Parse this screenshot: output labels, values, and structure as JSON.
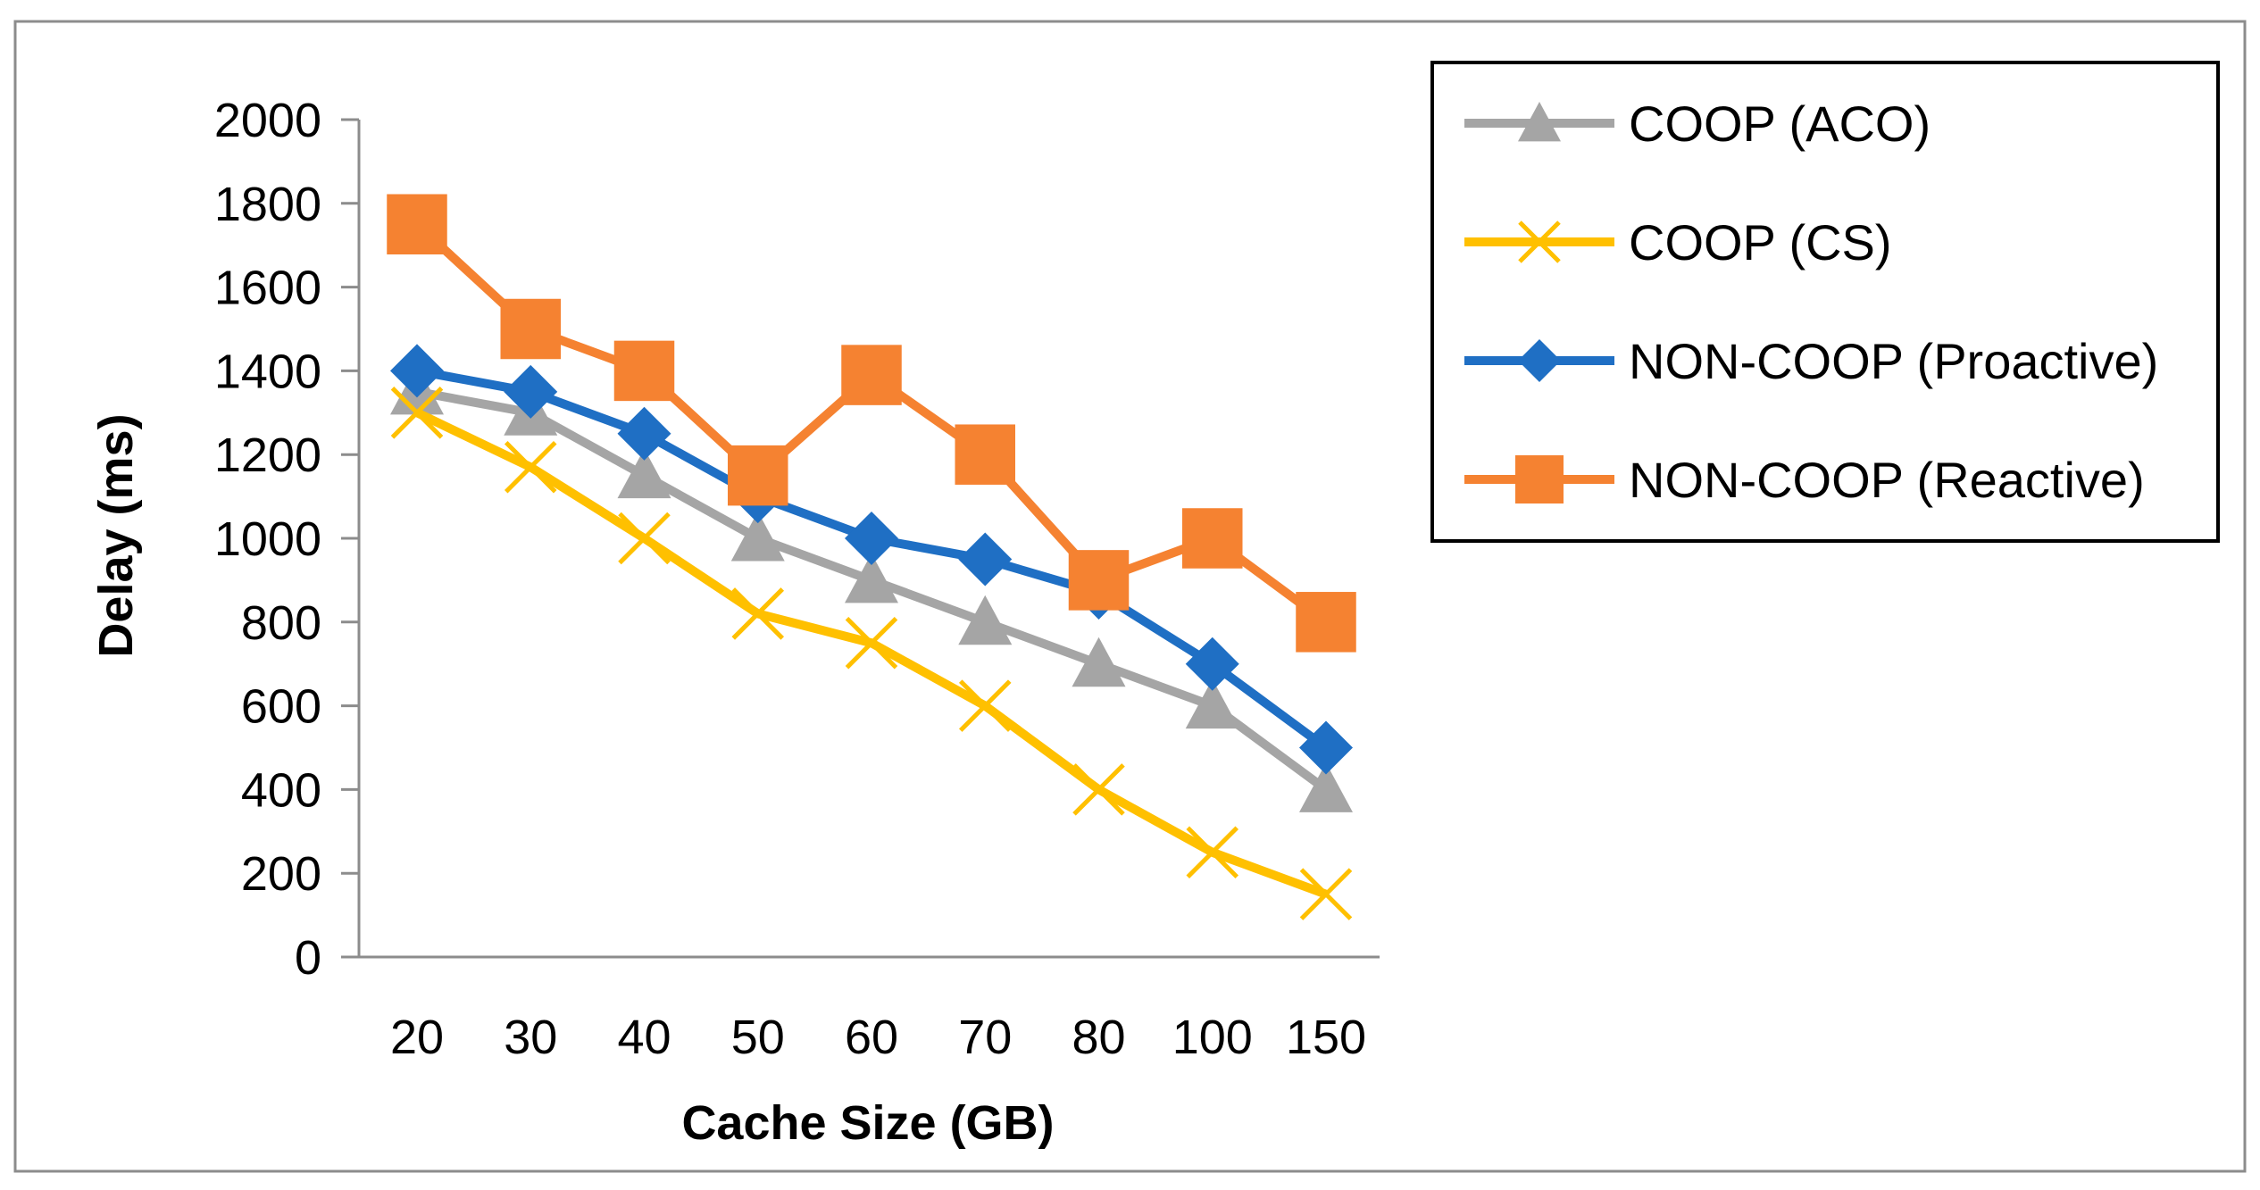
{
  "chart_data": {
    "type": "line",
    "title": "",
    "xlabel": "Cache Size (GB)",
    "ylabel": "Delay (ms)",
    "categories": [
      "20",
      "30",
      "40",
      "50",
      "60",
      "70",
      "80",
      "100",
      "150"
    ],
    "ylim": [
      0,
      2000
    ],
    "yticks": [
      0,
      200,
      400,
      600,
      800,
      1000,
      1200,
      1400,
      1600,
      1800,
      2000
    ],
    "grid": false,
    "legend_position": "right",
    "series": [
      {
        "name": "COOP (ACO)",
        "color": "#A5A5A5",
        "marker": "triangle",
        "values": [
          1350,
          1300,
          1150,
          1000,
          900,
          800,
          700,
          600,
          400
        ]
      },
      {
        "name": "COOP (CS)",
        "color": "#FFC000",
        "marker": "x",
        "values": [
          1300,
          1170,
          1000,
          820,
          750,
          600,
          400,
          250,
          150
        ]
      },
      {
        "name": "NON-COOP (Proactive)",
        "color": "#1F6FC4",
        "marker": "diamond",
        "values": [
          1400,
          1350,
          1250,
          1100,
          1000,
          950,
          870,
          700,
          500
        ]
      },
      {
        "name": "NON-COOP (Reactive)",
        "color": "#F58231",
        "marker": "square",
        "values": [
          1750,
          1500,
          1400,
          1150,
          1390,
          1200,
          900,
          1000,
          800
        ]
      }
    ]
  }
}
